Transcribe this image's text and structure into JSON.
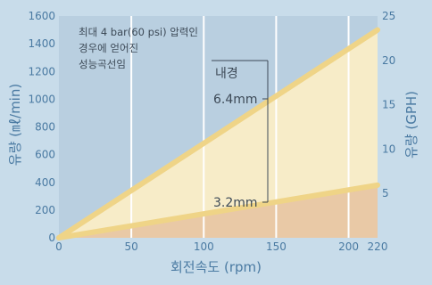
{
  "chart_data": {
    "type": "line",
    "xlabel": "회전속도 (rpm)",
    "ylabel": "유량 (㎖/min)",
    "y2label": "유량 (GPH)",
    "xlim": [
      0,
      220
    ],
    "ylim": [
      0,
      1600
    ],
    "y2lim": [
      0,
      25
    ],
    "x_ticks": [
      0,
      50,
      100,
      150,
      200,
      220
    ],
    "y_ticks": [
      0,
      200,
      400,
      600,
      800,
      1000,
      1200,
      1400,
      1600
    ],
    "y2_ticks": [
      5,
      10,
      15,
      20,
      25
    ],
    "grid_x": true,
    "note_lines": [
      "최대 4 bar(60 psi) 압력인",
      "경우에 얻어진",
      "성능곡선임"
    ],
    "legend_title": "내경",
    "series": [
      {
        "name": "6.4mm",
        "x": [
          0,
          220
        ],
        "y": [
          0,
          1500
        ]
      },
      {
        "name": "3.2mm",
        "x": [
          0,
          220
        ],
        "y": [
          0,
          380
        ]
      }
    ],
    "colors": {
      "background": "#c8dcea",
      "plot_bg": "#b9cfe0",
      "grid": "#ffffff",
      "band_large": "#f7ecc8",
      "band_small": "#e9c9a6",
      "line": "#efd487",
      "axis_text": "#4a7aa2",
      "annotation": "#3d4a57"
    }
  }
}
